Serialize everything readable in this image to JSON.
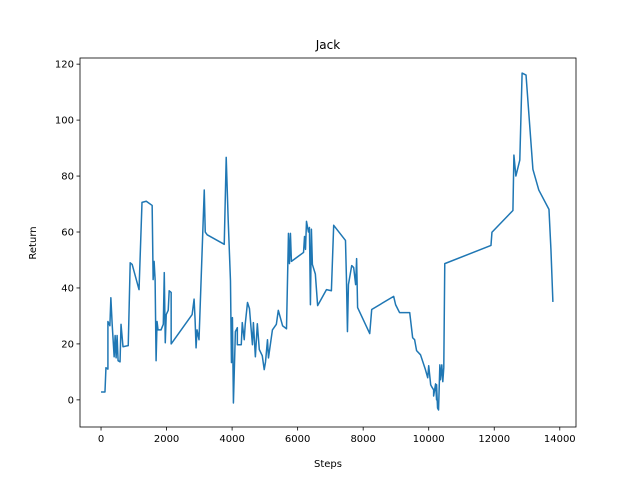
{
  "chart_data": {
    "type": "line",
    "title": "Jack",
    "x_label": "Steps",
    "y_label": "Return",
    "xlim": [
      -642,
      14495
    ],
    "ylim": [
      -9.7,
      122.2
    ],
    "xticks": [
      0,
      2000,
      4000,
      6000,
      8000,
      10000,
      12000,
      14000
    ],
    "yticks": [
      0,
      20,
      40,
      60,
      80,
      100,
      120
    ],
    "grid": false,
    "series": [
      {
        "color": "#1f77b4",
        "x": [
          0,
          120,
          150,
          210,
          210,
          270,
          300,
          340,
          400,
          430,
          460,
          490,
          520,
          580,
          610,
          670,
          830,
          890,
          950,
          1160,
          1250,
          1380,
          1560,
          1590,
          1620,
          1650,
          1680,
          1710,
          1740,
          1830,
          1900,
          1930,
          1960,
          1990,
          2050,
          2080,
          2140,
          2140,
          2780,
          2840,
          2870,
          2900,
          2930,
          2990,
          3150,
          3180,
          3240,
          3760,
          3820,
          3880,
          3950,
          3980,
          4010,
          4040,
          4100,
          4160,
          4160,
          4280,
          4310,
          4370,
          4400,
          4470,
          4530,
          4620,
          4650,
          4710,
          4770,
          4830,
          4920,
          4980,
          5020,
          5080,
          5110,
          5230,
          5350,
          5410,
          5540,
          5660,
          5720,
          5750,
          5780,
          5810,
          6180,
          6210,
          6240,
          6270,
          6330,
          6360,
          6390,
          6420,
          6450,
          6540,
          6610,
          6880,
          7030,
          7100,
          7460,
          7490,
          7520,
          7550,
          7650,
          7710,
          7770,
          7800,
          7830,
          8200,
          8260,
          8930,
          8990,
          9110,
          9230,
          9420,
          9510,
          9570,
          9630,
          9750,
          9900,
          9970,
          10000,
          10060,
          10090,
          10150,
          10150,
          10210,
          10240,
          10240,
          10270,
          10300,
          10340,
          10360,
          10400,
          10430,
          10460,
          10490,
          11900,
          11930,
          12570,
          12600,
          12660,
          12780,
          12850,
          12970,
          13180,
          13360,
          13670,
          13730,
          13790
        ],
        "values": [
          2.8,
          2.8,
          11.5,
          11,
          28,
          26.5,
          36.5,
          27,
          15.4,
          23,
          15,
          23,
          14,
          13.6,
          27,
          19,
          19.4,
          49,
          48.4,
          39.4,
          70.6,
          71,
          69.5,
          43,
          49.5,
          43,
          14,
          28,
          25,
          25,
          27,
          45.5,
          20.4,
          30.5,
          32,
          39,
          38.4,
          20,
          30.5,
          36,
          28.7,
          18.6,
          25,
          21.5,
          75,
          60,
          59,
          55.6,
          86.7,
          64.5,
          42.6,
          13.3,
          29.4,
          -1.1,
          24.4,
          25.8,
          19.7,
          19.7,
          27.6,
          21.5,
          27,
          34.8,
          32.6,
          19.7,
          27.6,
          15.4,
          27.2,
          18,
          15.8,
          10.8,
          13.6,
          21.5,
          15,
          25,
          27,
          32,
          26.5,
          25.4,
          59.5,
          48.7,
          59.5,
          49.5,
          52.7,
          58.4,
          53.8,
          63.8,
          60,
          61.6,
          34,
          61,
          48.4,
          45,
          33.7,
          39.4,
          39,
          62.4,
          57,
          43,
          24.4,
          41.2,
          48,
          47.3,
          41.2,
          50.5,
          33,
          23.7,
          32.3,
          37,
          34,
          31.2,
          31.2,
          31.2,
          22.2,
          21.5,
          17.6,
          16.1,
          10.8,
          7.9,
          12.2,
          5.4,
          4.7,
          3.6,
          1.4,
          5.7,
          0,
          5.4,
          -2.9,
          -3.6,
          12.5,
          7.2,
          12.5,
          6.5,
          11.5,
          48.7,
          55.2,
          59.9,
          67.7,
          87.5,
          80,
          85.7,
          116.8,
          116.1,
          82.4,
          75,
          68.1,
          53.8,
          35
        ]
      }
    ]
  }
}
